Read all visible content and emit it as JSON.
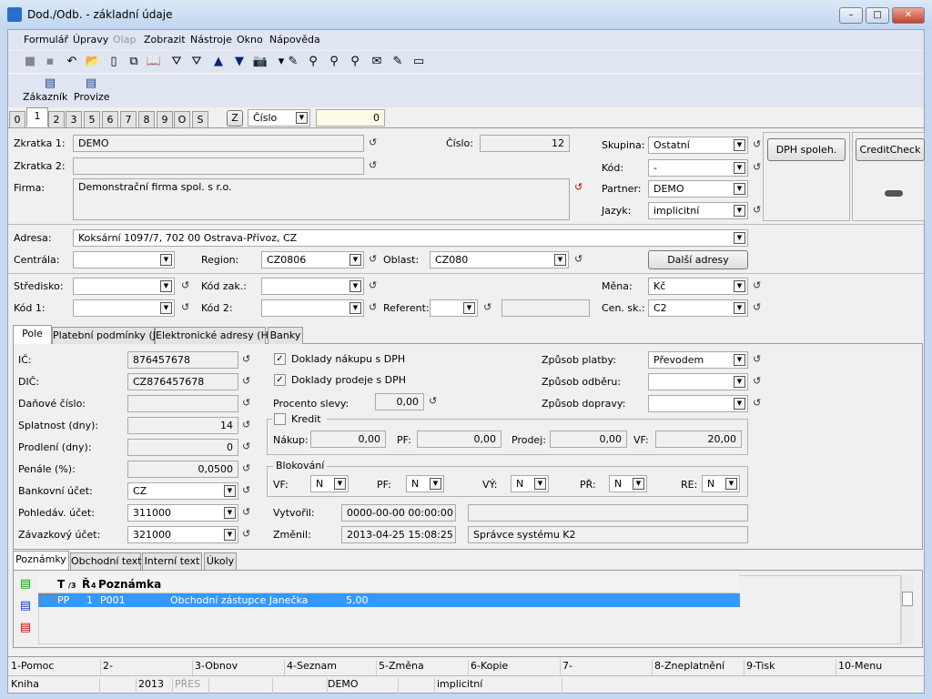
{
  "window": {
    "title": "Dod./Odb. - základní údaje",
    "minimize": "–",
    "maximize": "□",
    "close": "✕"
  },
  "menu": [
    "Formulář",
    "Úpravy",
    "Olap",
    "Zobrazit",
    "Nástroje",
    "Okno",
    "Nápověda"
  ],
  "toolbar_icons": [
    "save-icon",
    "save-as-icon",
    "undo-icon",
    "open-folder-icon",
    "new-document-icon",
    "copy-icon",
    "book-icon",
    "filter-icon",
    "filter-list-icon",
    "arrow-up-icon",
    "arrow-down-icon",
    "camera-icon",
    "dropdown-arrow-icon",
    "excel-export-icon",
    "binoculars-icon",
    "binoculars-next-icon",
    "binoculars-prev-icon",
    "envelope-icon",
    "edit-note-icon",
    "card-icon"
  ],
  "toolbar_glyphs": [
    "■",
    "▪",
    "↶",
    "📂",
    "▯",
    "⧉",
    "📖",
    "⛛",
    "⛛",
    "▲",
    "▼",
    "📷",
    "▾",
    "✎",
    "⚲",
    "⚲",
    "⚲",
    "✉",
    "✎",
    "▭"
  ],
  "actions": [
    {
      "label": "Zákazník"
    },
    {
      "label": "Provize"
    }
  ],
  "index_tabs": [
    "0",
    "1",
    "2",
    "3",
    "5",
    "6",
    "7",
    "8",
    "9",
    "O",
    "S"
  ],
  "search": {
    "z_button": "Z",
    "sort_field": "Číslo",
    "value": "0"
  },
  "header": {
    "zkratka1": {
      "label": "Zkratka 1:",
      "value": "DEMO"
    },
    "zkratka2": {
      "label": "Zkratka 2:",
      "value": ""
    },
    "firma": {
      "label": "Firma:",
      "value": "Demonstrační firma spol. s r.o."
    },
    "cislo": {
      "label": "Číslo:",
      "value": "12"
    },
    "skupina": {
      "label": "Skupina:",
      "value": "Ostatní"
    },
    "kod": {
      "label": "Kód:",
      "value": "-"
    },
    "partner": {
      "label": "Partner:",
      "value": "DEMO"
    },
    "jazyk": {
      "label": "Jazyk:",
      "value": "implicitní"
    },
    "dph_button": "DPH spoleh.",
    "creditcheck_button": "CreditCheck",
    "adresa": {
      "label": "Adresa:",
      "value": "Koksární 1097/7, 702 00  Ostrava-Přívoz, CZ"
    },
    "centrala": {
      "label": "Centrála:",
      "value": ""
    },
    "region": {
      "label": "Region:",
      "value": "CZ0806"
    },
    "oblast": {
      "label": "Oblast:",
      "value": "CZ080"
    },
    "dalsi_adresy": "Další adresy",
    "stredisko": {
      "label": "Středisko:",
      "value": ""
    },
    "kod_zak": {
      "label": "Kód zak.:",
      "value": ""
    },
    "mena": {
      "label": "Měna:",
      "value": "Kč"
    },
    "kod1": {
      "label": "Kód 1:",
      "value": ""
    },
    "kod2": {
      "label": "Kód 2:",
      "value": ""
    },
    "referent": {
      "label": "Referent:",
      "value": "",
      "name": ""
    },
    "cen_sk": {
      "label": "Cen. sk.:",
      "value": "C2"
    }
  },
  "detail_tabs": [
    "Pole",
    "Platební podmínky (J)",
    "Elektronické adresy (H)",
    "Banky"
  ],
  "pole": {
    "ic": {
      "label": "IČ:",
      "value": "876457678"
    },
    "dic": {
      "label": "DIČ:",
      "value": "CZ876457678"
    },
    "danove": {
      "label": "Daňové číslo:",
      "value": ""
    },
    "splatnost": {
      "label": "Splatnost (dny):",
      "value": "14"
    },
    "prodleni": {
      "label": "Prodlení (dny):",
      "value": "0"
    },
    "penale": {
      "label": "Penále (%):",
      "value": "0,0500"
    },
    "bank": {
      "label": "Bankovní účet:",
      "value": "CZ"
    },
    "pohledav": {
      "label": "Pohledáv. účet:",
      "value": "311000"
    },
    "zavazk": {
      "label": "Závazkový účet:",
      "value": "321000"
    },
    "nakup_dph": {
      "label": "Doklady nákupu s DPH",
      "checked": true
    },
    "prodej_dph": {
      "label": "Doklady prodeje s DPH",
      "checked": true
    },
    "sleva": {
      "label": "Procento slevy:",
      "value": "0,00"
    },
    "kredit": {
      "label": "Kredit",
      "checked": false,
      "nakup_label": "Nákup:",
      "nakup": "0,00",
      "pf_label": "PF:",
      "pf": "0,00",
      "prodej_label": "Prodej:",
      "prodej": "0,00",
      "vf_label": "VF:",
      "vf": "20,00"
    },
    "blokovani": {
      "label": "Blokování",
      "vf_label": "VF:",
      "vf": "N",
      "pf_label": "PF:",
      "pf": "N",
      "vy_label": "VÝ:",
      "vy": "N",
      "pr_label": "PŘ:",
      "pr": "N",
      "re_label": "RE:",
      "re": "N"
    },
    "vytvoril": {
      "label": "Vytvořil:",
      "date": "0000-00-00 00:00:00",
      "user": ""
    },
    "zmenil": {
      "label": "Změnil:",
      "date": "2013-04-25 15:08:25",
      "user": "Správce systému K2"
    },
    "platba": {
      "label": "Způsob platby:",
      "value": "Převodem"
    },
    "odber": {
      "label": "Způsob odběru:",
      "value": ""
    },
    "doprava": {
      "label": "Způsob dopravy:",
      "value": ""
    }
  },
  "notes_tabs": [
    "Poznámky",
    "Obchodní text",
    "Interní text",
    "Úkoly"
  ],
  "notes": {
    "columns": [
      "T",
      "/3",
      "Ř",
      "4",
      "Poznámka"
    ],
    "rows": [
      {
        "type": "PP",
        "order": "1",
        "code": "P001",
        "text": "Obchodní zástupce Janečka",
        "value": "5,00"
      }
    ]
  },
  "fkeys": [
    "1-Pomoc",
    "2-",
    "3-Obnov",
    "4-Seznam",
    "5-Změna",
    "6-Kopie",
    "7-",
    "8-Zneplatnění",
    "9-Tisk",
    "10-Menu"
  ],
  "status": [
    "Kniha",
    "",
    "2013",
    "PŘES",
    "",
    "",
    "DEMO",
    "",
    "implicitní"
  ],
  "colors": {
    "selection": "#3399ff",
    "highlight_field": "#fffbe6",
    "window_frame": "#c6d8ef"
  }
}
